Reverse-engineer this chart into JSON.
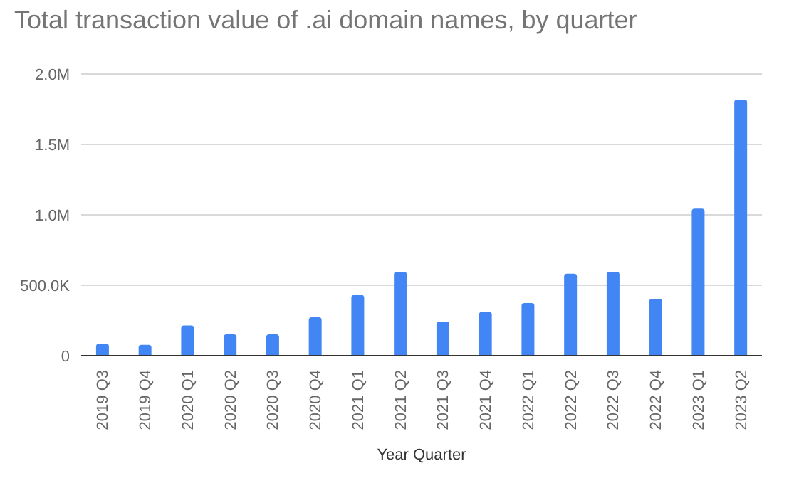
{
  "chart_data": {
    "type": "bar",
    "title": "Total transaction value of .ai domain names, by quarter",
    "xlabel": "Year Quarter",
    "categories": [
      "2019 Q3",
      "2019 Q4",
      "2020 Q1",
      "2020 Q2",
      "2020 Q3",
      "2020 Q4",
      "2021 Q1",
      "2021 Q2",
      "2021 Q3",
      "2021 Q4",
      "2022 Q1",
      "2022 Q2",
      "2022 Q3",
      "2022 Q4",
      "2023 Q1",
      "2023 Q2"
    ],
    "values": [
      84000,
      77000,
      215000,
      152000,
      152000,
      273000,
      431000,
      596000,
      242000,
      310000,
      374000,
      582000,
      596000,
      404000,
      1044000,
      1818000
    ],
    "color": "#4285f4",
    "ylim": [
      0,
      2000000
    ],
    "yticks": [
      0,
      {
        "value": 500000,
        "label": "500.0K"
      },
      {
        "value": 1000000,
        "label": "1.0M"
      },
      {
        "value": 1500000,
        "label": "1.5M"
      },
      {
        "value": 2000000,
        "label": "2.0M"
      }
    ],
    "grid": "y"
  }
}
